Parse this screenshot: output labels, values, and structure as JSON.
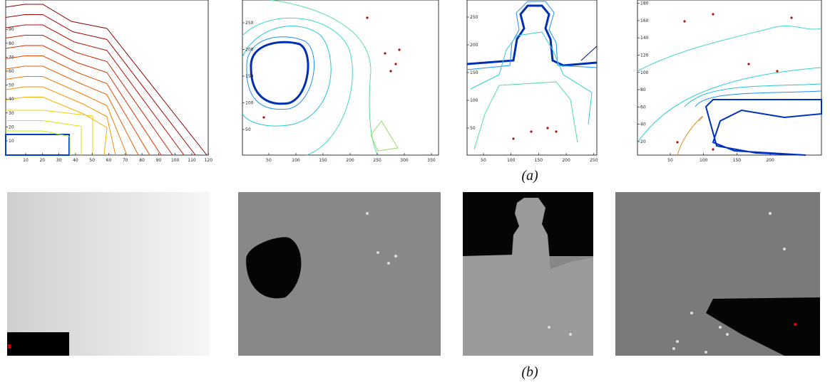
{
  "figure": {
    "panels": [
      {
        "xticks": [
          10,
          20,
          30,
          40,
          50,
          60,
          70,
          80,
          90,
          100,
          110,
          120
        ],
        "yticks": [
          10,
          20,
          30,
          40,
          50,
          60,
          70,
          80,
          90
        ]
      },
      {
        "xticks": [
          50,
          100,
          150,
          200,
          250,
          300,
          350
        ],
        "yticks": [
          50,
          100,
          150,
          200,
          250
        ]
      },
      {
        "xticks": [
          50,
          100,
          150,
          200,
          250
        ],
        "yticks": [
          50,
          100,
          150,
          200,
          250
        ]
      },
      {
        "xticks": [
          50,
          100,
          150,
          200
        ],
        "yticks": [
          20,
          40,
          60,
          80,
          100,
          120,
          140,
          160,
          180
        ]
      }
    ],
    "caption_a": "(a)",
    "caption_b": "(b)"
  }
}
